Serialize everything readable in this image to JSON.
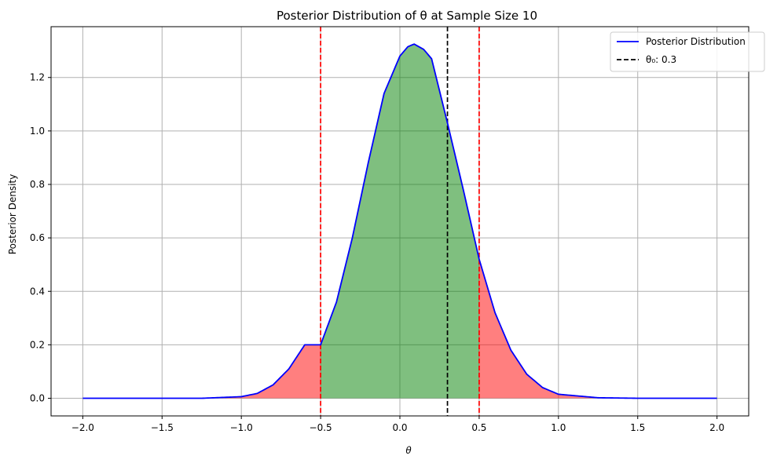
{
  "chart_data": {
    "type": "line",
    "title": "Posterior Distribution of θ at Sample Size 10",
    "xlabel": "θ",
    "ylabel": "Posterior Density",
    "xlim": [
      -2.2,
      2.2
    ],
    "ylim": [
      -0.066,
      1.39
    ],
    "grid": true,
    "legend_position": "top-right",
    "x_ticks": [
      -2.0,
      -1.5,
      -1.0,
      -0.5,
      0.0,
      0.5,
      1.0,
      1.5,
      2.0
    ],
    "x_tick_labels": [
      "−2.0",
      "−1.5",
      "−1.0",
      "−0.5",
      "0.0",
      "0.5",
      "1.0",
      "1.5",
      "2.0"
    ],
    "y_ticks": [
      0.0,
      0.2,
      0.4,
      0.6,
      0.8,
      1.0,
      1.2
    ],
    "y_tick_labels": [
      "0.0",
      "0.2",
      "0.4",
      "0.6",
      "0.8",
      "1.0",
      "1.2"
    ],
    "series": [
      {
        "name": "Posterior Distribution",
        "color": "#0000ff",
        "style": "solid",
        "x": [
          -2.0,
          -1.5,
          -1.25,
          -1.0,
          -0.9,
          -0.8,
          -0.7,
          -0.6,
          -0.5,
          -0.4,
          -0.3,
          -0.2,
          -0.1,
          0.0,
          0.05,
          0.09,
          0.15,
          0.2,
          0.3,
          0.4,
          0.5,
          0.6,
          0.7,
          0.8,
          0.9,
          1.0,
          1.25,
          1.5,
          2.0
        ],
        "y": [
          0.0,
          0.0,
          0.0,
          0.006,
          0.018,
          0.05,
          0.11,
          0.2,
          0.2,
          0.36,
          0.6,
          0.88,
          1.14,
          1.28,
          1.315,
          1.325,
          1.305,
          1.27,
          1.03,
          0.78,
          0.52,
          0.32,
          0.18,
          0.09,
          0.04,
          0.015,
          0.002,
          0.0,
          0.0
        ]
      }
    ],
    "reference_lines": [
      {
        "name": "θ₀: 0.3",
        "x": 0.3,
        "color": "#000000",
        "style": "dashed",
        "legend": true
      },
      {
        "x": -0.5,
        "color": "#ff0000",
        "style": "dashed",
        "legend": false
      },
      {
        "x": 0.5,
        "color": "#ff0000",
        "style": "dashed",
        "legend": false
      }
    ],
    "shaded_regions": [
      {
        "from": -2.0,
        "to": -0.5,
        "color": "#ff0000",
        "opacity": 0.5
      },
      {
        "from": -0.5,
        "to": 0.5,
        "color": "#008000",
        "opacity": 0.5
      },
      {
        "from": 0.5,
        "to": 2.0,
        "color": "#ff0000",
        "opacity": 0.5
      }
    ],
    "legend": [
      {
        "label": "Posterior Distribution",
        "color": "#0000ff",
        "style": "solid"
      },
      {
        "label": "θ₀: 0.3",
        "color": "#000000",
        "style": "dashed"
      }
    ]
  }
}
